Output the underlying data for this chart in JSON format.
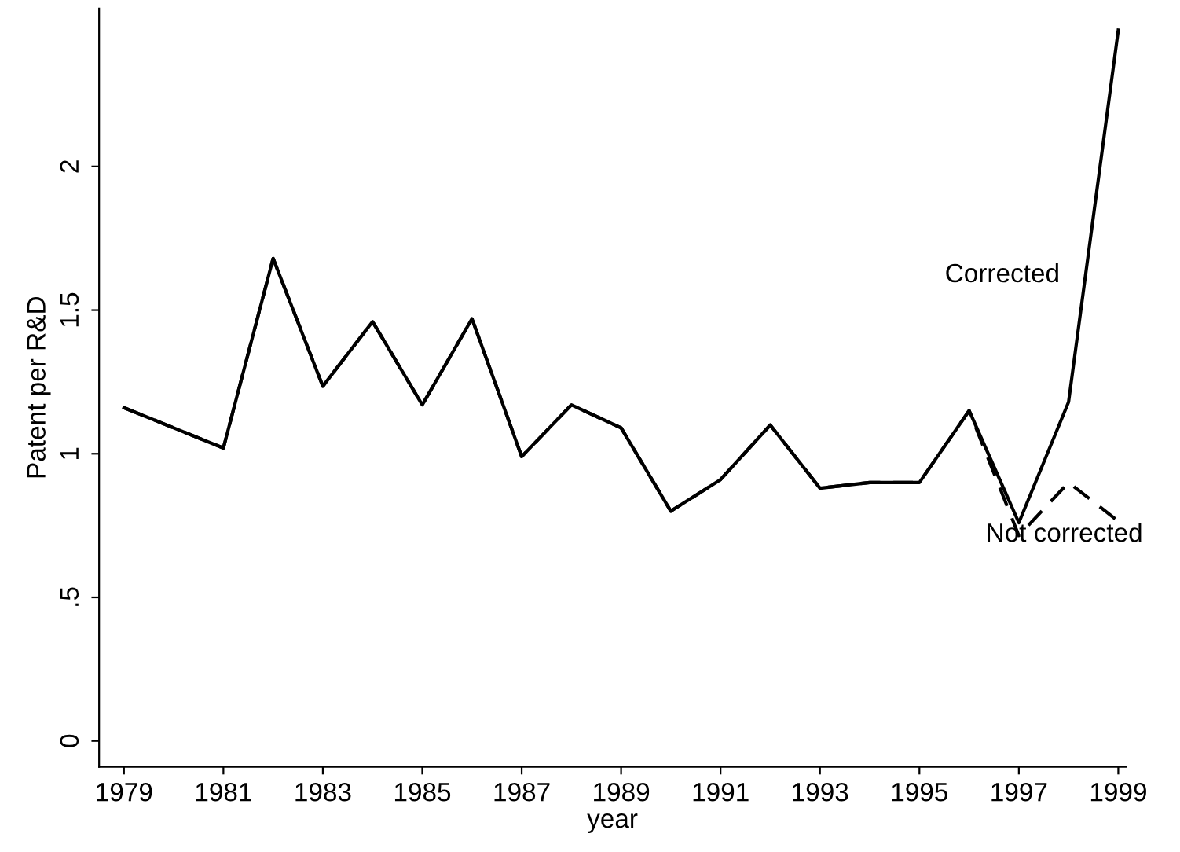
{
  "chart_data": {
    "type": "line",
    "xlabel": "year",
    "ylabel": "Patent per R&D",
    "x": [
      1979,
      1980,
      1981,
      1982,
      1983,
      1984,
      1985,
      1986,
      1987,
      1988,
      1989,
      1990,
      1991,
      1992,
      1993,
      1994,
      1995,
      1996,
      1997,
      1998,
      1999
    ],
    "series": [
      {
        "name": "Not corrected",
        "color": "#000000",
        "line_style": "dashed",
        "values": [
          1.16,
          1.09,
          1.02,
          1.68,
          1.235,
          1.46,
          1.17,
          1.47,
          0.99,
          1.17,
          1.09,
          0.8,
          0.91,
          1.1,
          0.88,
          0.9,
          0.9,
          1.15,
          0.715,
          0.9,
          0.765
        ]
      },
      {
        "name": "Corrected",
        "color": "#000000",
        "line_style": "solid",
        "values": [
          1.16,
          1.09,
          1.02,
          1.68,
          1.235,
          1.46,
          1.17,
          1.47,
          0.99,
          1.17,
          1.09,
          0.8,
          0.91,
          1.1,
          0.88,
          0.9,
          0.9,
          1.15,
          0.76,
          1.18,
          2.475
        ]
      }
    ],
    "xlim": [
      1978.5,
      1999.15
    ],
    "xticks": [
      1979,
      1981,
      1983,
      1985,
      1987,
      1989,
      1991,
      1993,
      1995,
      1997,
      1999
    ],
    "ylim": [
      -0.09,
      2.55
    ],
    "yticks": [
      0,
      {
        "value": 0.5,
        "label": ".5"
      },
      1,
      1.5,
      2
    ],
    "grid": false,
    "legend": false,
    "marker": "none"
  }
}
